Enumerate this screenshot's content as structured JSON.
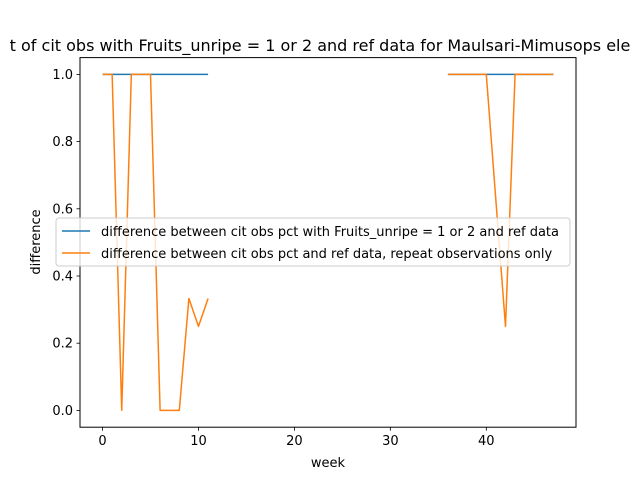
{
  "chart_data": {
    "type": "line",
    "title": "t of cit obs with Fruits_unripe = 1 or 2 and ref data for Maulsari-Mimusops ele",
    "xlabel": "week",
    "ylabel": "difference",
    "xlim": [
      -2.35,
      49.35
    ],
    "ylim": [
      -0.05,
      1.05
    ],
    "xticks": [
      0,
      10,
      20,
      30,
      40
    ],
    "yticks": [
      0.0,
      0.2,
      0.4,
      0.6,
      0.8,
      1.0
    ],
    "grid": false,
    "legend_position": "center-right",
    "series": [
      {
        "name": "difference between cit obs pct with Fruits_unripe = 1 or 2 and ref data",
        "color": "#1f77b4",
        "segments": [
          [
            [
              0,
              1
            ],
            [
              1,
              1
            ],
            [
              2,
              1
            ],
            [
              3,
              1
            ],
            [
              4,
              1
            ],
            [
              5,
              1
            ],
            [
              6,
              1
            ],
            [
              7,
              1
            ],
            [
              8,
              1
            ],
            [
              9,
              1
            ],
            [
              10,
              1
            ],
            [
              11,
              1
            ]
          ],
          [
            [
              36,
              1
            ],
            [
              37,
              1
            ],
            [
              38,
              1
            ],
            [
              39,
              1
            ],
            [
              40,
              1
            ],
            [
              41,
              1
            ],
            [
              42,
              1
            ],
            [
              43,
              1
            ],
            [
              44,
              1
            ],
            [
              45,
              1
            ],
            [
              46,
              1
            ],
            [
              47,
              1
            ]
          ]
        ]
      },
      {
        "name": "difference between cit obs pct and ref data, repeat observations only",
        "color": "#ff7f0e",
        "segments": [
          [
            [
              0,
              1
            ],
            [
              1,
              1
            ],
            [
              2,
              0
            ],
            [
              3,
              1
            ],
            [
              4,
              1
            ],
            [
              5,
              1
            ],
            [
              6,
              0
            ],
            [
              7,
              0
            ],
            [
              8,
              0
            ],
            [
              9,
              0.333
            ],
            [
              10,
              0.25
            ],
            [
              11,
              0.333
            ]
          ],
          [
            [
              36,
              1
            ],
            [
              37,
              1
            ],
            [
              38,
              1
            ],
            [
              39,
              1
            ],
            [
              40,
              1
            ],
            [
              41,
              0.625
            ],
            [
              42,
              0.25
            ],
            [
              43,
              1
            ],
            [
              44,
              1
            ],
            [
              45,
              1
            ],
            [
              46,
              1
            ],
            [
              47,
              1
            ]
          ]
        ]
      }
    ]
  }
}
